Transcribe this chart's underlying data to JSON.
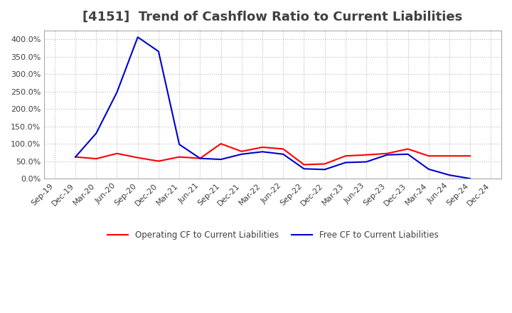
{
  "title": "[4151]  Trend of Cashflow Ratio to Current Liabilities",
  "x_labels": [
    "Sep-19",
    "Dec-19",
    "Mar-20",
    "Jun-20",
    "Sep-20",
    "Dec-20",
    "Mar-21",
    "Jun-21",
    "Sep-21",
    "Dec-21",
    "Mar-22",
    "Jun-22",
    "Sep-22",
    "Dec-22",
    "Mar-23",
    "Jun-23",
    "Sep-23",
    "Dec-23",
    "Mar-24",
    "Jun-24",
    "Sep-24",
    "Dec-24"
  ],
  "operating_cf": [
    null,
    62,
    57,
    72,
    60,
    50,
    62,
    58,
    100,
    78,
    90,
    85,
    40,
    42,
    65,
    68,
    72,
    85,
    65,
    65,
    65,
    null
  ],
  "free_cf": [
    null,
    62,
    130,
    248,
    406,
    365,
    98,
    58,
    55,
    70,
    77,
    70,
    28,
    26,
    46,
    48,
    68,
    70,
    27,
    10,
    0,
    null
  ],
  "operating_color": "#ff0000",
  "free_color": "#0000cd",
  "ylim": [
    0,
    4.25
  ],
  "yticks": [
    0.0,
    0.5,
    1.0,
    1.5,
    2.0,
    2.5,
    3.0,
    3.5,
    4.0
  ],
  "background_color": "#ffffff",
  "plot_bg_color": "#ffffff",
  "grid_color": "#bbbbbb",
  "title_color": "#404040",
  "title_fontsize": 13,
  "tick_fontsize": 8,
  "legend_labels": [
    "Operating CF to Current Liabilities",
    "Free CF to Current Liabilities"
  ]
}
